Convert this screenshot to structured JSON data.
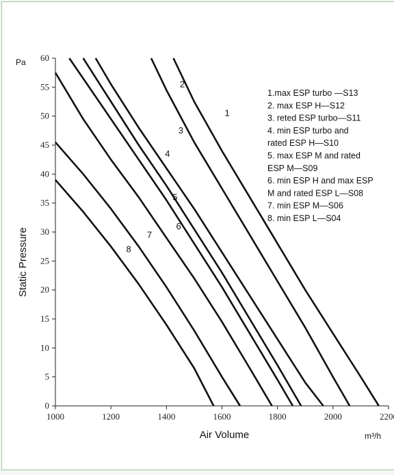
{
  "chart_data": {
    "type": "line",
    "title": "",
    "xlabel": "Air Volume",
    "ylabel": "Static Pressure",
    "x_unit": "m³/h",
    "y_unit": "Pa",
    "xlim": [
      1000,
      2200
    ],
    "ylim": [
      0,
      60
    ],
    "xticks": [
      1000,
      1200,
      1400,
      1600,
      1800,
      2000,
      2200
    ],
    "yticks": [
      0,
      5,
      10,
      15,
      20,
      25,
      30,
      35,
      40,
      45,
      50,
      55,
      60
    ],
    "grid": false,
    "legend_placement": "top-right",
    "legend": [
      "1.max ESP turbo —S13",
      "2. max ESP H—S12",
      "3. reted ESP turbo—S11",
      "4. min ESP turbo and",
      "rated  ESP H—S10",
      "5. max ESP M and rated",
      "ESP M—S09",
      "6. min ESP H and max ESP",
      "M and rated ESP L—S08",
      "7. min ESP M—S06",
      "8. min ESP L—S04"
    ],
    "series": [
      {
        "label": "1",
        "label_at": [
          1610,
          50
        ],
        "points": [
          [
            1425,
            60
          ],
          [
            1500,
            52.5
          ],
          [
            1600,
            44
          ],
          [
            1700,
            36
          ],
          [
            1800,
            28
          ],
          [
            1900,
            20
          ],
          [
            2000,
            12.5
          ],
          [
            2100,
            5
          ],
          [
            2165,
            0
          ]
        ]
      },
      {
        "label": "2",
        "label_at": [
          1448,
          55
        ],
        "points": [
          [
            1345,
            60
          ],
          [
            1400,
            54.5
          ],
          [
            1500,
            45.5
          ],
          [
            1600,
            37.5
          ],
          [
            1700,
            29.5
          ],
          [
            1800,
            21.5
          ],
          [
            1900,
            13.5
          ],
          [
            2000,
            5
          ],
          [
            2060,
            0
          ]
        ]
      },
      {
        "label": "3",
        "label_at": [
          1443,
          47
        ],
        "points": [
          [
            1145,
            60
          ],
          [
            1200,
            55.5
          ],
          [
            1300,
            48
          ],
          [
            1400,
            41
          ],
          [
            1500,
            34
          ],
          [
            1600,
            26.5
          ],
          [
            1700,
            19
          ],
          [
            1800,
            11.5
          ],
          [
            1900,
            4
          ],
          [
            1965,
            0
          ]
        ]
      },
      {
        "label": "4",
        "label_at": [
          1395,
          43
        ],
        "points": [
          [
            1100,
            60
          ],
          [
            1200,
            52.5
          ],
          [
            1300,
            45
          ],
          [
            1400,
            38
          ],
          [
            1500,
            30.5
          ],
          [
            1600,
            23
          ],
          [
            1700,
            15
          ],
          [
            1800,
            7
          ],
          [
            1885,
            0
          ]
        ]
      },
      {
        "label": "5",
        "label_at": [
          1422,
          35.5
        ],
        "points": [
          [
            1050,
            60
          ],
          [
            1100,
            56.5
          ],
          [
            1200,
            49.5
          ],
          [
            1300,
            42.5
          ],
          [
            1400,
            35.5
          ],
          [
            1500,
            28
          ],
          [
            1600,
            20.5
          ],
          [
            1700,
            12.5
          ],
          [
            1800,
            4.5
          ],
          [
            1855,
            0
          ]
        ]
      },
      {
        "label": "6",
        "label_at": [
          1435,
          30.5
        ],
        "points": [
          [
            1000,
            57.5
          ],
          [
            1100,
            49.5
          ],
          [
            1200,
            42.5
          ],
          [
            1300,
            36
          ],
          [
            1400,
            29
          ],
          [
            1500,
            22
          ],
          [
            1600,
            14.5
          ],
          [
            1700,
            6.5
          ],
          [
            1780,
            0
          ]
        ]
      },
      {
        "label": "7",
        "label_at": [
          1330,
          29
        ],
        "points": [
          [
            1000,
            45.5
          ],
          [
            1100,
            40
          ],
          [
            1200,
            34
          ],
          [
            1300,
            27.5
          ],
          [
            1400,
            20.5
          ],
          [
            1500,
            13
          ],
          [
            1600,
            5
          ],
          [
            1665,
            0
          ]
        ]
      },
      {
        "label": "8",
        "label_at": [
          1255,
          26.5
        ],
        "points": [
          [
            1000,
            39
          ],
          [
            1100,
            33.5
          ],
          [
            1200,
            27.5
          ],
          [
            1300,
            21
          ],
          [
            1400,
            14
          ],
          [
            1500,
            6.5
          ],
          [
            1570,
            0
          ]
        ]
      }
    ]
  }
}
